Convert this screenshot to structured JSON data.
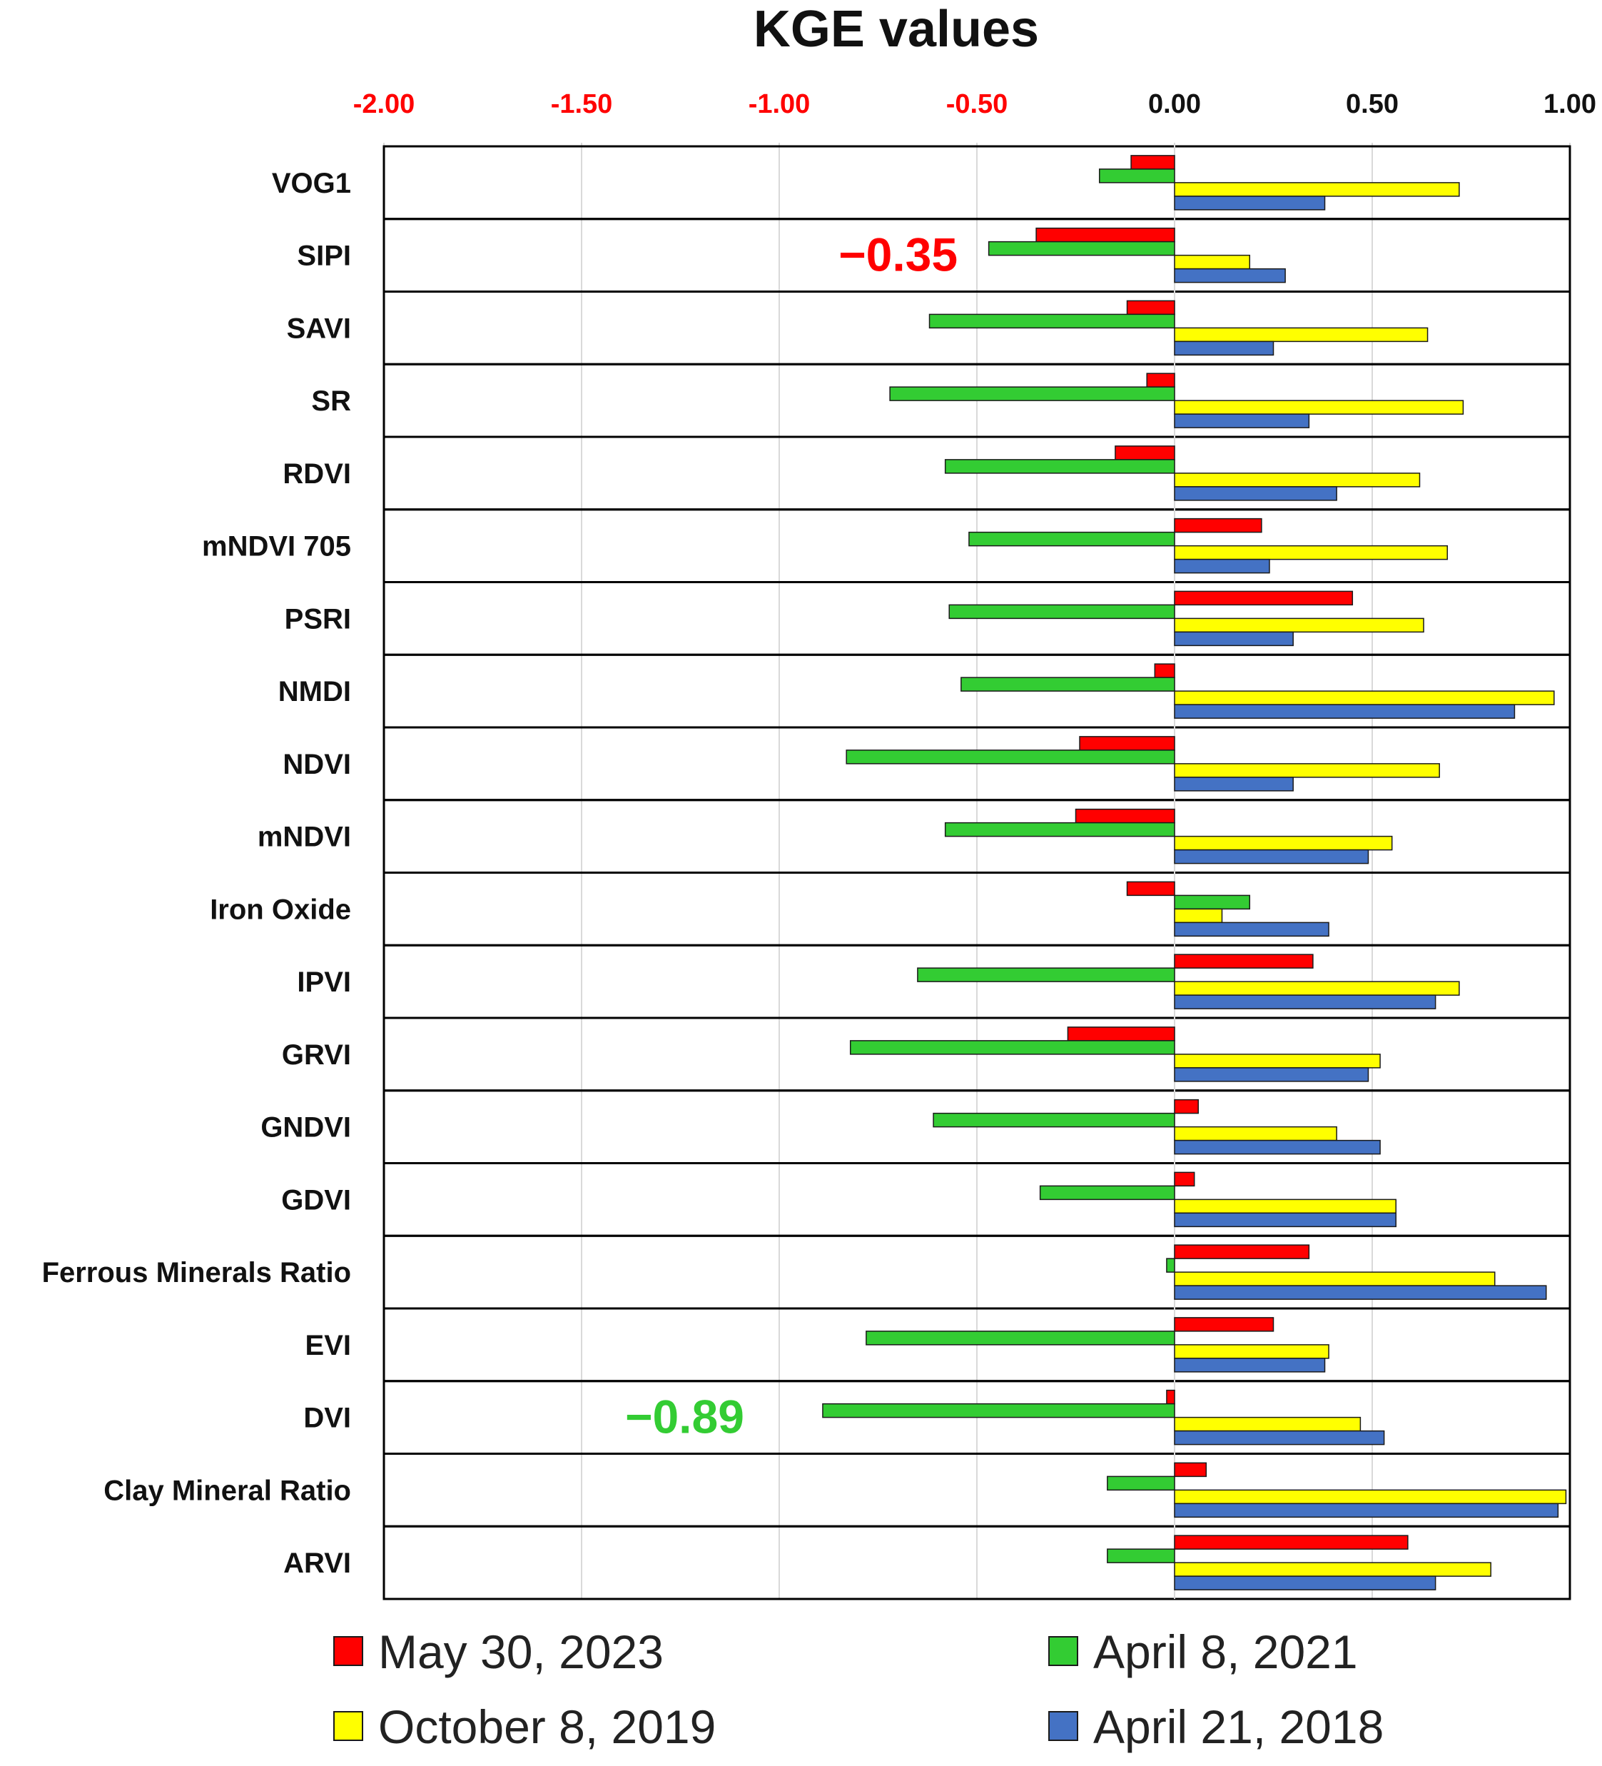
{
  "chart_data": {
    "type": "bar",
    "orientation": "horizontal",
    "title": "KGE values",
    "xlim": [
      -2.0,
      1.0
    ],
    "x_ticks": [
      "-2.00",
      "-1.50",
      "-1.00",
      "-0.50",
      "0.00",
      "0.50",
      "1.00"
    ],
    "x_tick_values": [
      -2.0,
      -1.5,
      -1.0,
      -0.5,
      0.0,
      0.5,
      1.0
    ],
    "negative_tick_color": "#ff0000",
    "positive_tick_color": "#111111",
    "grid": true,
    "legend_position": "bottom",
    "categories": [
      "VOG1",
      "SIPI",
      "SAVI",
      "SR",
      "RDVI",
      "mNDVI 705",
      "PSRI",
      "NMDI",
      "NDVI",
      "mNDVI",
      "Iron Oxide",
      "IPVI",
      "GRVI",
      "GNDVI",
      "GDVI",
      "Ferrous Minerals Ratio",
      "EVI",
      "DVI",
      "Clay Mineral Ratio",
      "ARVI"
    ],
    "series": [
      {
        "name": "May 30, 2023",
        "color": "#ff0000",
        "values": [
          -0.11,
          -0.35,
          -0.12,
          -0.07,
          -0.15,
          0.22,
          0.45,
          -0.05,
          -0.24,
          -0.25,
          -0.12,
          0.35,
          -0.27,
          0.06,
          0.05,
          0.34,
          0.25,
          -0.02,
          0.08,
          0.59
        ]
      },
      {
        "name": "April 8, 2021",
        "color": "#33cc33",
        "values": [
          -0.19,
          -0.47,
          -0.62,
          -0.72,
          -0.58,
          -0.52,
          -0.57,
          -0.54,
          -0.83,
          -0.58,
          0.19,
          -0.65,
          -0.82,
          -0.61,
          -0.34,
          -0.02,
          -0.78,
          -0.89,
          -0.17,
          -0.17
        ]
      },
      {
        "name": "October 8, 2019",
        "color": "#ffff00",
        "values": [
          0.72,
          0.19,
          0.64,
          0.73,
          0.62,
          0.69,
          0.63,
          0.96,
          0.67,
          0.55,
          0.12,
          0.72,
          0.52,
          0.41,
          0.56,
          0.81,
          0.39,
          0.47,
          0.99,
          0.8
        ]
      },
      {
        "name": "April 21, 2018",
        "color": "#4472c4",
        "values": [
          0.38,
          0.28,
          0.25,
          0.34,
          0.41,
          0.24,
          0.3,
          0.86,
          0.3,
          0.49,
          0.39,
          0.66,
          0.49,
          0.52,
          0.56,
          0.94,
          0.38,
          0.53,
          0.97,
          0.66
        ]
      }
    ],
    "annotations": [
      {
        "text": "−0.35",
        "category": "SIPI",
        "color": "#ff0000"
      },
      {
        "text": "−0.89",
        "category": "DVI",
        "color": "#33cc33"
      }
    ]
  }
}
